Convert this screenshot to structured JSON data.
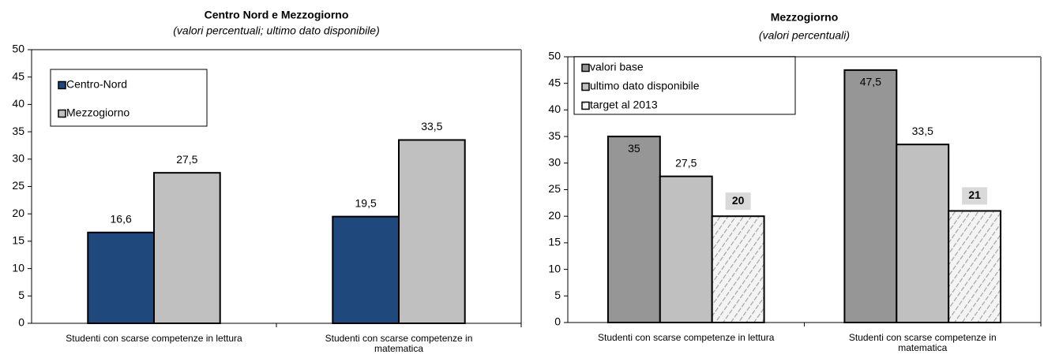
{
  "chart_data": [
    {
      "type": "bar",
      "title": "Centro Nord e Mezzogiorno",
      "subtitle": "(valori percentuali; ultimo dato disponibile)",
      "categories": [
        "Studenti con scarse competenze in lettura",
        "Studenti con scarse competenze in matematica"
      ],
      "series": [
        {
          "name": "Centro-Nord",
          "color": "#1f497d",
          "values": [
            16.6,
            19.5
          ],
          "value_labels": [
            "16,6",
            "19,5"
          ]
        },
        {
          "name": "Mezzogiorno",
          "color": "#c0c0c0",
          "values": [
            27.5,
            33.5
          ],
          "value_labels": [
            "27,5",
            "33,5"
          ]
        }
      ],
      "ylim": [
        0,
        50
      ],
      "yticks": [
        0,
        5,
        10,
        15,
        20,
        25,
        30,
        35,
        40,
        45,
        50
      ],
      "grid": false,
      "legend": "upper left"
    },
    {
      "type": "bar",
      "title": "Mezzogiorno",
      "subtitle": "(valori percentuali)",
      "categories": [
        "Studenti con scarse competenze in lettura",
        "Studenti con scarse competenze in matematica"
      ],
      "series": [
        {
          "name": "valori base",
          "color": "#969696",
          "values": [
            35,
            47.5
          ],
          "value_labels": [
            "35",
            "47,5"
          ],
          "label_inside": true
        },
        {
          "name": "ultimo dato disponibile",
          "color": "#c0c0c0",
          "values": [
            27.5,
            33.5
          ],
          "value_labels": [
            "27,5",
            "33,5"
          ]
        },
        {
          "name": "target al 2013",
          "color": "#ffffff",
          "pattern": "hatch",
          "values": [
            20,
            21
          ],
          "label_box": true
        }
      ],
      "ylim": [
        0,
        50
      ],
      "yticks": [
        0,
        5,
        10,
        15,
        20,
        25,
        30,
        35,
        40,
        45,
        50
      ],
      "grid": false,
      "legend": "upper left"
    }
  ]
}
